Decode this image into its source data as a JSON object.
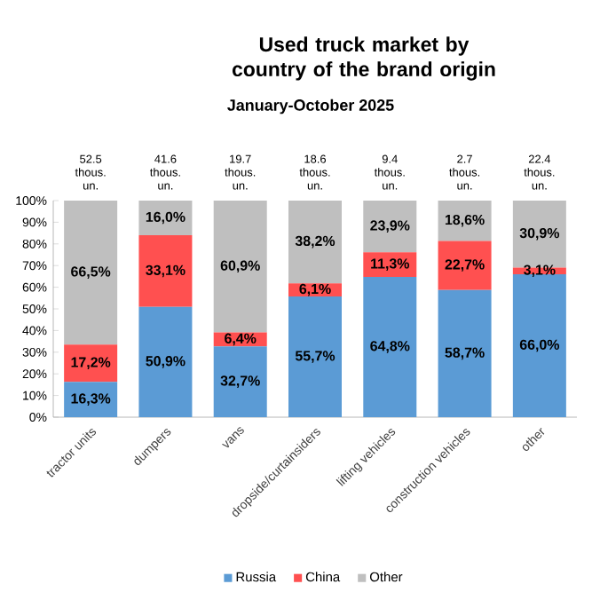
{
  "chart_data": {
    "type": "bar",
    "title": "Used truck market by country of the brand origin",
    "subtitle": "January-October 2025",
    "categories": [
      "tractor units",
      "dumpers",
      "vans",
      "dropside/curtainsiders",
      "lifting vehicles",
      "construction vehicles",
      "other"
    ],
    "stacked": true,
    "legend": "bottom",
    "ylim": [
      0,
      100
    ],
    "yticks": [
      {
        "value": 0,
        "label": "0%"
      },
      {
        "value": 10,
        "label": "10%"
      },
      {
        "value": 20,
        "label": "20%"
      },
      {
        "value": 30,
        "label": "30%"
      },
      {
        "value": 40,
        "label": "40%"
      },
      {
        "value": 50,
        "label": "50%"
      },
      {
        "value": 60,
        "label": "60%"
      },
      {
        "value": 70,
        "label": "70%"
      },
      {
        "value": 80,
        "label": "80%"
      },
      {
        "value": 90,
        "label": "90%"
      },
      {
        "value": 100,
        "label": "100%"
      }
    ],
    "annotations": [
      "52.5 thous. un.",
      "41.6 thous. un.",
      "19.7 thous. un.",
      "18.6 thous. un.",
      "9.4 thous. un.",
      "2.7 thous. un.",
      "22.4 thous. un."
    ],
    "series": [
      {
        "name": "Russia",
        "color": "#5b9bd5",
        "values": [
          16.3,
          50.9,
          32.7,
          55.7,
          64.8,
          58.7,
          66.0
        ],
        "value_labels": [
          "16,3%",
          "50,9%",
          "32,7%",
          "55,7%",
          "64,8%",
          "58,7%",
          "66,0%"
        ]
      },
      {
        "name": "China",
        "color": "#ff5050",
        "values": [
          17.2,
          33.1,
          6.4,
          6.1,
          11.3,
          22.7,
          3.1
        ],
        "value_labels": [
          "17,2%",
          "33,1%",
          "6,4%",
          "6,1%",
          "11,3%",
          "22,7%",
          "3,1%"
        ]
      },
      {
        "name": "Other",
        "color": "#bfbfbf",
        "values": [
          66.5,
          16.0,
          60.9,
          38.2,
          23.9,
          18.6,
          30.9
        ],
        "value_labels": [
          "66,5%",
          "16,0%",
          "60,9%",
          "38,2%",
          "23,9%",
          "18,6%",
          "30,9%"
        ]
      }
    ]
  }
}
